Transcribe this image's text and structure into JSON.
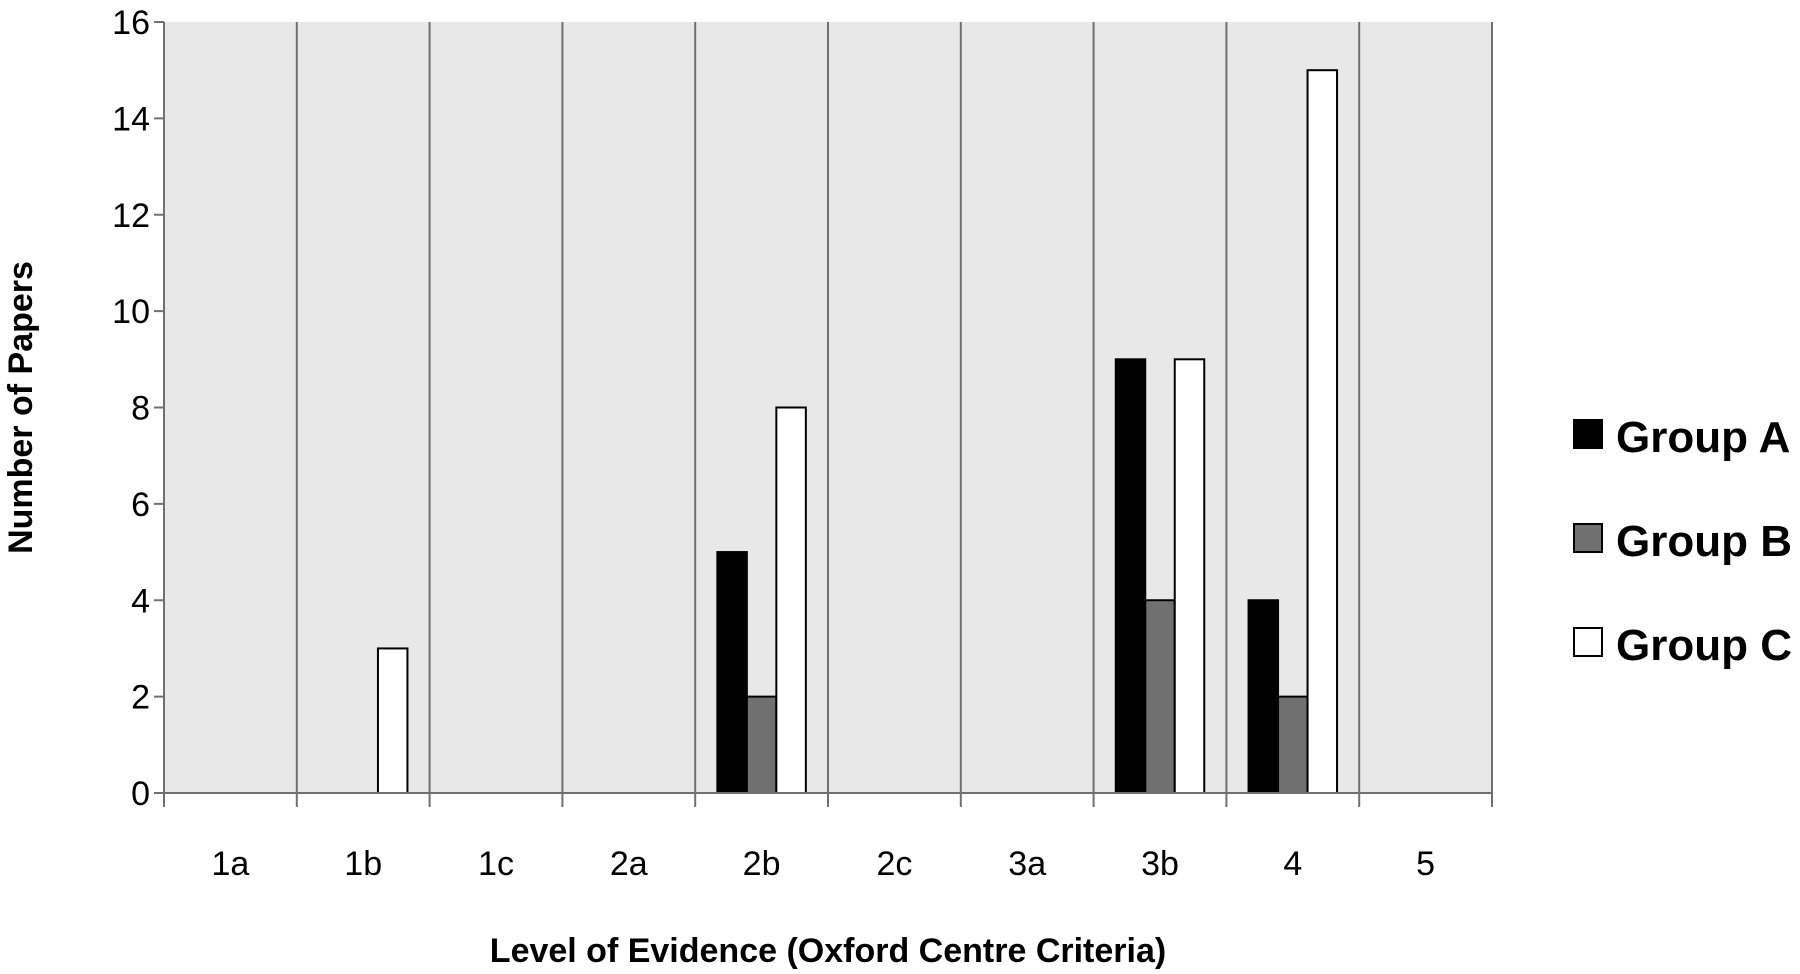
{
  "chart_data": {
    "type": "bar",
    "title": "",
    "xlabel": "Level of Evidence (Oxford Centre Criteria)",
    "ylabel": "Number of Papers",
    "ylim": [
      0,
      16
    ],
    "yticks": [
      0,
      2,
      4,
      6,
      8,
      10,
      12,
      14,
      16
    ],
    "ytick_labels": [
      "0",
      "2",
      "4",
      "6",
      "8",
      "10",
      "12",
      "14",
      "16"
    ],
    "grid": "vertical category separators",
    "legend_position": "right",
    "categories": [
      "1a",
      "1b",
      "1c",
      "2a",
      "2b",
      "2c",
      "3a",
      "3b",
      "4",
      "5"
    ],
    "series": [
      {
        "name": "Group A",
        "color": "#000000",
        "values": [
          0,
          0,
          0,
          0,
          5,
          0,
          0,
          9,
          4,
          0
        ]
      },
      {
        "name": "Group B",
        "color": "#707070",
        "values": [
          0,
          0,
          0,
          0,
          2,
          0,
          0,
          4,
          2,
          0
        ]
      },
      {
        "name": "Group C",
        "color": "#ffffff",
        "values": [
          0,
          3,
          0,
          0,
          8,
          0,
          0,
          9,
          15,
          0
        ]
      }
    ],
    "plot_background": "#e8e8e8",
    "grid_color": "#707070"
  }
}
